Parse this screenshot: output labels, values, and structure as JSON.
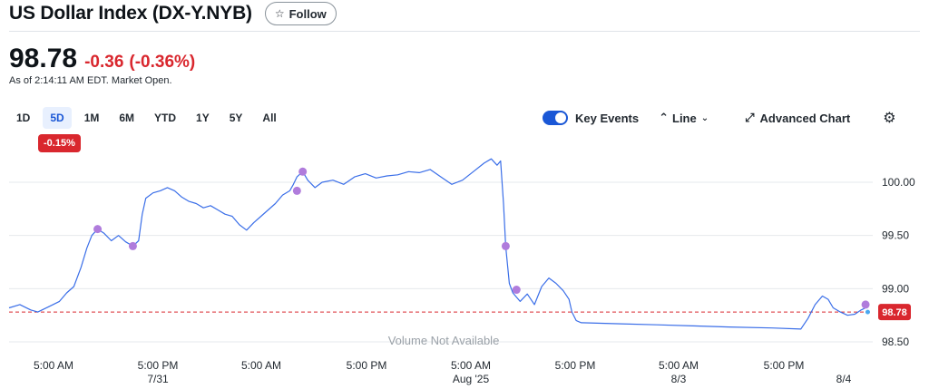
{
  "header": {
    "title": "US Dollar Index (DX-Y.NYB)",
    "follow_label": "Follow",
    "follow_icon": "star-outline-icon"
  },
  "quote": {
    "price": "98.78",
    "change": "-0.36",
    "change_pct": "(-0.36%)",
    "as_of": "As of 2:14:11 AM EDT. Market Open."
  },
  "ranges": {
    "items": [
      "1D",
      "5D",
      "1M",
      "6M",
      "YTD",
      "1Y",
      "5Y",
      "All"
    ],
    "active": "5D",
    "active_change": "-0.15%"
  },
  "controls": {
    "key_events_label": "Key Events",
    "key_events_on": true,
    "chart_type_label": "Line",
    "advanced_chart_label": "Advanced Chart",
    "settings_icon": "gear-icon"
  },
  "colors": {
    "line": "#3a6ee8",
    "down": "#d9272e",
    "event_marker": "#b07cdc",
    "accent": "#1a57d6"
  },
  "chart_data": {
    "type": "line",
    "y_ticks": [
      "100.00",
      "99.50",
      "99.00",
      "98.50"
    ],
    "ylim": [
      98.4,
      100.3
    ],
    "x_ticks": [
      {
        "label": "5:00 AM",
        "sub": ""
      },
      {
        "label": "5:00 PM",
        "sub": "7/31"
      },
      {
        "label": "5:00 AM",
        "sub": ""
      },
      {
        "label": "5:00 PM",
        "sub": ""
      },
      {
        "label": "5:00 AM",
        "sub": "Aug '25"
      },
      {
        "label": "5:00 PM",
        "sub": ""
      },
      {
        "label": "5:00 AM",
        "sub": "8/3"
      },
      {
        "label": "5:00 PM",
        "sub": ""
      },
      {
        "label": "",
        "sub": "8/4"
      }
    ],
    "reference_value": 98.78,
    "reference_label": "98.78",
    "volume_note": "Volume Not Available",
    "series": [
      {
        "values": [
          [
            0,
            98.82
          ],
          [
            1.5,
            98.85
          ],
          [
            3,
            98.8
          ],
          [
            4,
            98.78
          ],
          [
            5.5,
            98.83
          ],
          [
            7,
            98.88
          ],
          [
            8,
            98.96
          ],
          [
            9,
            99.02
          ],
          [
            10,
            99.2
          ],
          [
            10.8,
            99.38
          ],
          [
            11.5,
            99.5
          ],
          [
            12.3,
            99.56
          ],
          [
            13.2,
            99.52
          ],
          [
            14.2,
            99.45
          ],
          [
            15.2,
            99.5
          ],
          [
            16.2,
            99.44
          ],
          [
            17.2,
            99.4
          ],
          [
            18,
            99.45
          ],
          [
            18.5,
            99.7
          ],
          [
            19,
            99.85
          ],
          [
            20,
            99.9
          ],
          [
            21,
            99.92
          ],
          [
            22,
            99.95
          ],
          [
            23,
            99.92
          ],
          [
            24,
            99.86
          ],
          [
            25,
            99.82
          ],
          [
            26,
            99.8
          ],
          [
            27,
            99.76
          ],
          [
            28,
            99.78
          ],
          [
            29,
            99.74
          ],
          [
            30,
            99.7
          ],
          [
            31,
            99.68
          ],
          [
            32,
            99.6
          ],
          [
            33,
            99.55
          ],
          [
            34,
            99.62
          ],
          [
            35,
            99.68
          ],
          [
            36,
            99.74
          ],
          [
            37,
            99.8
          ],
          [
            38,
            99.88
          ],
          [
            39,
            99.92
          ],
          [
            39.5,
            99.98
          ],
          [
            40,
            100.05
          ],
          [
            40.8,
            100.1
          ],
          [
            41.5,
            100.02
          ],
          [
            42.5,
            99.95
          ],
          [
            43.5,
            100.0
          ],
          [
            45,
            100.02
          ],
          [
            46.5,
            99.98
          ],
          [
            48,
            100.05
          ],
          [
            49.5,
            100.08
          ],
          [
            51,
            100.04
          ],
          [
            52.5,
            100.06
          ],
          [
            54,
            100.07
          ],
          [
            55.5,
            100.1
          ],
          [
            57,
            100.09
          ],
          [
            58.5,
            100.12
          ],
          [
            60,
            100.05
          ],
          [
            61.5,
            99.98
          ],
          [
            63,
            100.02
          ],
          [
            64.5,
            100.1
          ],
          [
            66,
            100.18
          ],
          [
            67,
            100.22
          ],
          [
            67.8,
            100.16
          ],
          [
            68.3,
            100.2
          ],
          [
            68.7,
            99.8
          ],
          [
            69.0,
            99.4
          ],
          [
            69.5,
            99.05
          ],
          [
            70.0,
            98.96
          ],
          [
            71.0,
            98.88
          ],
          [
            72.0,
            98.95
          ],
          [
            73,
            98.85
          ],
          [
            74,
            99.02
          ],
          [
            75,
            99.1
          ],
          [
            76,
            99.05
          ],
          [
            77,
            98.98
          ],
          [
            77.8,
            98.9
          ],
          [
            78.2,
            98.78
          ],
          [
            78.8,
            98.7
          ],
          [
            79.5,
            98.68
          ],
          [
            85,
            98.67
          ],
          [
            90,
            98.66
          ],
          [
            95,
            98.65
          ],
          [
            100,
            98.64
          ],
          [
            106,
            98.63
          ],
          [
            110,
            98.62
          ],
          [
            111,
            98.72
          ],
          [
            112,
            98.85
          ],
          [
            113,
            98.93
          ],
          [
            113.8,
            98.9
          ],
          [
            114.5,
            98.82
          ],
          [
            115.5,
            98.78
          ],
          [
            116.5,
            98.75
          ],
          [
            117.5,
            98.76
          ],
          [
            118.4,
            98.8
          ],
          [
            119,
            98.82
          ]
        ]
      }
    ],
    "events": [
      [
        12.3,
        99.56
      ],
      [
        17.2,
        99.4
      ],
      [
        40.0,
        99.92
      ],
      [
        40.8,
        100.1
      ],
      [
        69.0,
        99.4
      ],
      [
        70.5,
        98.99
      ],
      [
        119,
        98.85
      ]
    ],
    "last_point": [
      119.3,
      98.78
    ]
  }
}
